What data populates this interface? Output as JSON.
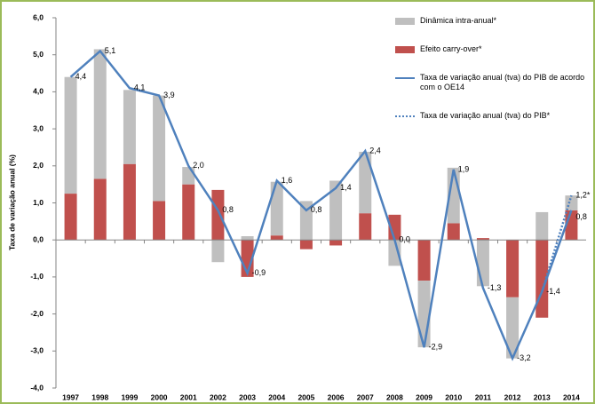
{
  "chart_data": {
    "type": "bar",
    "stacked": true,
    "y_label": "Taxa de variação anual (%)",
    "categories": [
      "1997",
      "1998",
      "1999",
      "2000",
      "2001",
      "2002",
      "2003",
      "2004",
      "2005",
      "2006",
      "2007",
      "2008",
      "2009",
      "2010",
      "2011",
      "2012",
      "2013",
      "2014"
    ],
    "ylim": [
      -4,
      6
    ],
    "yticks": [
      {
        "value": -4,
        "label": "-4,0"
      },
      {
        "value": -3,
        "label": "-3,0"
      },
      {
        "value": -2,
        "label": "-2,0"
      },
      {
        "value": -1,
        "label": "-1,0"
      },
      {
        "value": 0,
        "label": "0,0"
      },
      {
        "value": 1,
        "label": "1,0"
      },
      {
        "value": 2,
        "label": "2,0"
      },
      {
        "value": 3,
        "label": "3,0"
      },
      {
        "value": 4,
        "label": "4,0"
      },
      {
        "value": 5,
        "label": "5,0"
      },
      {
        "value": 6,
        "label": "6,0"
      }
    ],
    "series": [
      {
        "name": "Efeito carry-over*",
        "type": "bar",
        "color": "#c0504d",
        "values": [
          1.25,
          1.65,
          2.05,
          1.05,
          1.5,
          1.35,
          -1.0,
          0.12,
          -0.25,
          -0.15,
          0.72,
          0.68,
          -1.1,
          0.45,
          0.05,
          -1.55,
          -2.1,
          0.8
        ]
      },
      {
        "name": "Dinâmica intra-anual*",
        "type": "bar",
        "color": "#bfbfbf",
        "values": [
          3.15,
          3.5,
          2.0,
          2.85,
          0.47,
          -0.6,
          0.1,
          1.45,
          1.05,
          1.6,
          1.66,
          -0.7,
          -1.8,
          1.5,
          -1.25,
          -1.65,
          0.75,
          0.4
        ]
      },
      {
        "name": "Taxa de variação anual (tva) do PIB de acordo com o OE14",
        "type": "line",
        "line_style": "solid",
        "color": "#4f81bd",
        "values": [
          4.4,
          5.1,
          4.1,
          3.9,
          2.0,
          0.8,
          -0.9,
          1.6,
          0.8,
          1.4,
          2.4,
          0.0,
          -2.9,
          1.9,
          -1.3,
          -3.2,
          -1.4,
          0.8
        ],
        "value_labels": [
          "4,4",
          "5,1",
          "4,1",
          "3,9",
          "2,0",
          "0,8",
          "-0,9",
          "1,6",
          "0,8",
          "1,4",
          "2,4",
          "0,0",
          "-2,9",
          "1,9",
          "-1,3",
          "-3,2",
          "-1,4",
          "0,8"
        ]
      },
      {
        "name": "Taxa de variação anual (tva) do PIB*",
        "type": "line",
        "line_style": "dotted",
        "color": "#4f81bd",
        "values": [
          null,
          null,
          null,
          null,
          null,
          null,
          null,
          null,
          null,
          null,
          null,
          null,
          null,
          null,
          null,
          null,
          -1.4,
          1.2
        ],
        "value_labels": [
          null,
          null,
          null,
          null,
          null,
          null,
          null,
          null,
          null,
          null,
          null,
          null,
          null,
          null,
          null,
          null,
          null,
          "1,2*"
        ]
      }
    ],
    "legend": "top-right"
  }
}
